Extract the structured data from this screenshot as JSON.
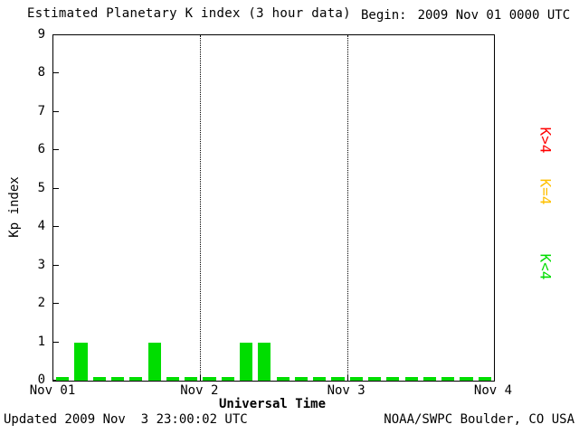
{
  "title": "Estimated Planetary K index (3 hour data)",
  "begin": {
    "label": "Begin:",
    "value": "2009 Nov 01 0000 UTC"
  },
  "footer": {
    "updated": "Updated 2009 Nov  3 23:00:02 UTC",
    "source": "NOAA/SWPC Boulder, CO USA"
  },
  "legend": [
    {
      "label": "K>4",
      "color": "#ff0000"
    },
    {
      "label": "K=4",
      "color": "#ffc000"
    },
    {
      "label": "K<4",
      "color": "#00dd00"
    }
  ],
  "chart_data": {
    "type": "bar",
    "title": "Estimated Planetary K index (3 hour data)",
    "xlabel": "Universal Time",
    "ylabel": "Kp index",
    "ylim": [
      0,
      9
    ],
    "yticks": [
      0,
      1,
      2,
      3,
      4,
      5,
      6,
      7,
      8,
      9
    ],
    "xtick_labels": [
      "Nov 01",
      "Nov 2",
      "Nov 3",
      "Nov 4"
    ],
    "days": 3,
    "hours_per_bar": 3,
    "bar_color": "#00dd00",
    "grid": "dotted vertical lines at interior day boundaries",
    "legend_position": "right, rotated 90deg",
    "categories": [
      "Nov 1 00-03",
      "Nov 1 03-06",
      "Nov 1 06-09",
      "Nov 1 09-12",
      "Nov 1 12-15",
      "Nov 1 15-18",
      "Nov 1 18-21",
      "Nov 1 21-24",
      "Nov 2 00-03",
      "Nov 2 03-06",
      "Nov 2 06-09",
      "Nov 2 09-12",
      "Nov 2 12-15",
      "Nov 2 15-18",
      "Nov 2 18-21",
      "Nov 2 21-24",
      "Nov 3 00-03",
      "Nov 3 03-06",
      "Nov 3 06-09",
      "Nov 3 09-12",
      "Nov 3 12-15",
      "Nov 3 15-18",
      "Nov 3 18-21",
      "Nov 3 21-24"
    ],
    "values": [
      0,
      1,
      0,
      0,
      0,
      1,
      0,
      0,
      0,
      0,
      1,
      1,
      0,
      0,
      0,
      0,
      0,
      0,
      0,
      0,
      0,
      0,
      0,
      0
    ]
  }
}
